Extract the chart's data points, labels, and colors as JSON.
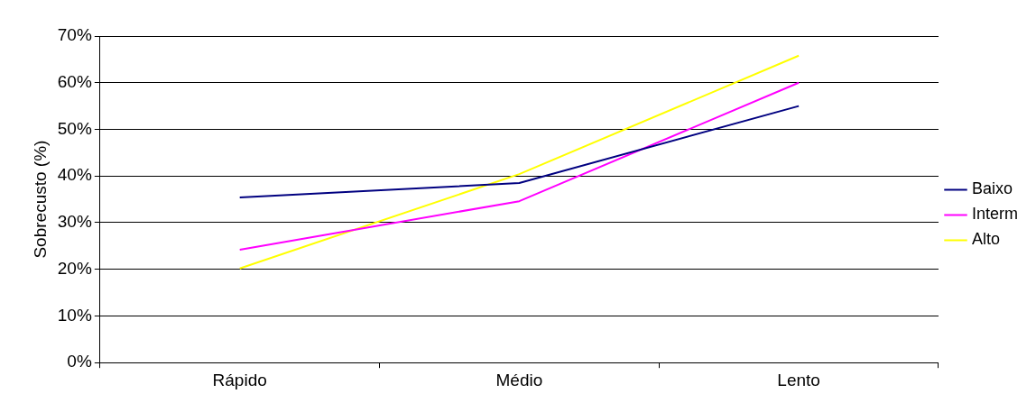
{
  "chart_data": {
    "type": "line",
    "ylabel": "Sobrecusto (%)",
    "categories": [
      "Rápido",
      "Médio",
      "Lento"
    ],
    "series": [
      {
        "name": "Baixo",
        "color": "#000080",
        "values": [
          35.4,
          38.5,
          55
        ]
      },
      {
        "name": "Interm",
        "color": "#ff00ff",
        "values": [
          24.2,
          34.6,
          60
        ]
      },
      {
        "name": "Alto",
        "color": "#ffff00",
        "values": [
          20.2,
          40.4,
          65.8
        ]
      }
    ],
    "ylim": [
      0,
      70
    ],
    "yticks": [
      {
        "value": 0,
        "label": "0%"
      },
      {
        "value": 10,
        "label": "10%"
      },
      {
        "value": 20,
        "label": "20%"
      },
      {
        "value": 30,
        "label": "30%"
      },
      {
        "value": 40,
        "label": "40%"
      },
      {
        "value": 50,
        "label": "50%"
      },
      {
        "value": 60,
        "label": "60%"
      },
      {
        "value": 70,
        "label": "70%"
      }
    ],
    "grid": "y",
    "legend": "right",
    "marker": "none",
    "line_style": "solid"
  }
}
